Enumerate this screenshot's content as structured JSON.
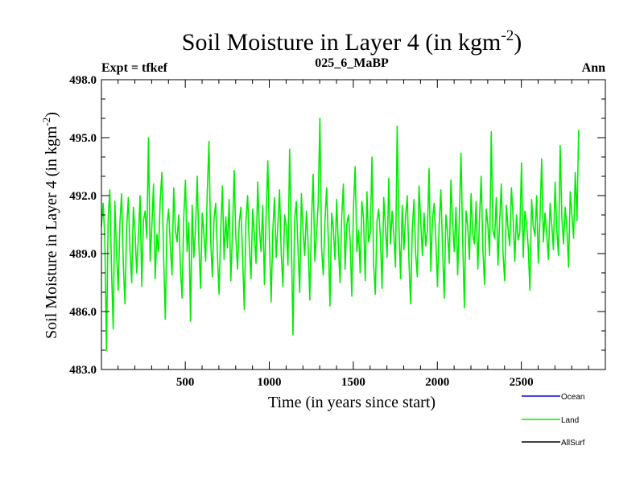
{
  "chart_data": {
    "type": "line",
    "title_main": "Soil Moisture in Layer 4 (in kgm",
    "title_sup": "-2",
    "title_end": ")",
    "subtitle_left": "Expt = tfkef",
    "subtitle_center": "025_6_MaBP",
    "subtitle_right": "Ann",
    "xlabel": "Time (in years since start)",
    "ylabel_main": "Soil Moisture in Layer 4 (in kgm",
    "ylabel_sup": "-2",
    "ylabel_end": ")",
    "xlim": [
      1,
      3000
    ],
    "ylim": [
      483.0,
      498.0
    ],
    "x_ticks": [
      500,
      1000,
      1500,
      2000,
      2500
    ],
    "x_tick_labels": [
      "500",
      "1000",
      "1500",
      "2000",
      "2500"
    ],
    "y_ticks": [
      483.0,
      486.0,
      489.0,
      492.0,
      495.0,
      498.0
    ],
    "y_tick_labels": [
      "483.0",
      "486.0",
      "489.0",
      "492.0",
      "495.0",
      "498.0"
    ],
    "grid": false,
    "legend_placement": "bottom-right",
    "series": [
      {
        "name": "Ocean",
        "color": "#0000ff",
        "values": []
      },
      {
        "name": "Land",
        "color": "#00ee00",
        "x_start": 1,
        "x_step": 10,
        "values": [
          490.4,
          491.6,
          489.9,
          484.0,
          490.8,
          492.3,
          488.2,
          485.1,
          491.7,
          489.0,
          487.1,
          490.6,
          492.1,
          488.5,
          486.4,
          490.3,
          491.9,
          489.2,
          487.5,
          491.4,
          490.1,
          488.0,
          489.9,
          492.0,
          487.3,
          490.7,
          491.2,
          489.8,
          495.0,
          488.6,
          490.4,
          492.6,
          487.7,
          490.0,
          489.1,
          491.8,
          493.2,
          488.9,
          485.6,
          490.5,
          491.3,
          489.4,
          487.9,
          492.4,
          490.2,
          489.6,
          491.0,
          488.3,
          486.7,
          490.9,
          492.8,
          489.1,
          490.6,
          485.5,
          491.5,
          488.8,
          490.3,
          493.0,
          489.5,
          487.2,
          491.1,
          490.0,
          488.6,
          492.2,
          494.8,
          489.7,
          487.8,
          490.8,
          491.6,
          489.0,
          486.9,
          490.2,
          492.5,
          488.7,
          490.9,
          489.3,
          491.8,
          487.6,
          490.1,
          493.3,
          489.8,
          488.2,
          490.6,
          491.4,
          488.9,
          486.1,
          490.7,
          492.0,
          489.4,
          487.7,
          491.3,
          490.0,
          488.5,
          492.7,
          490.3,
          489.1,
          491.5,
          487.4,
          490.9,
          493.8,
          489.6,
          486.5,
          490.2,
          491.9,
          488.8,
          490.5,
          492.3,
          489.0,
          487.3,
          491.0,
          490.4,
          488.4,
          494.4,
          489.9,
          484.8,
          490.8,
          491.7,
          489.2,
          487.0,
          492.1,
          490.1,
          488.9,
          491.2,
          489.5,
          486.6,
          490.7,
          493.1,
          488.6,
          490.0,
          491.6,
          496.0,
          489.3,
          487.9,
          490.6,
          492.4,
          489.8,
          486.3,
          491.1,
          490.3,
          488.7,
          491.8,
          489.4,
          487.5,
          490.9,
          492.6,
          488.2,
          490.5,
          491.0,
          489.7,
          486.8,
          491.4,
          493.5,
          489.1,
          490.2,
          488.0,
          491.7,
          490.8,
          487.6,
          492.2,
          489.6,
          490.1,
          494.0,
          488.4,
          486.9,
          490.7,
          491.3,
          489.9,
          487.2,
          491.9,
          490.4,
          488.8,
          492.9,
          489.5,
          491.2,
          490.0,
          488.3,
          495.6,
          490.6,
          487.7,
          491.5,
          489.2,
          490.9,
          492.0,
          488.6,
          486.4,
          490.3,
          491.8,
          489.0,
          487.8,
          492.5,
          490.7,
          488.9,
          491.1,
          489.4,
          490.2,
          493.4,
          488.1,
          490.8,
          491.6,
          489.7,
          487.3,
          490.5,
          492.3,
          489.3,
          486.7,
          491.0,
          490.1,
          488.5,
          492.8,
          490.6,
          489.1,
          491.4,
          487.9,
          490.9,
          494.2,
          489.6,
          486.2,
          491.2,
          490.4,
          488.7,
          492.1,
          490.0,
          489.5,
          491.7,
          488.2,
          490.8,
          493.0,
          489.2,
          487.4,
          491.3,
          490.5,
          488.9,
          495.3,
          490.2,
          489.8,
          491.9,
          488.4,
          490.7,
          492.6,
          489.0,
          487.6,
          491.5,
          490.3,
          489.4,
          492.4,
          490.9,
          488.6,
          491.0,
          489.7,
          490.1,
          493.7,
          488.8,
          491.2,
          490.6,
          489.3,
          487.1,
          491.8,
          490.4,
          489.9,
          492.0,
          488.5,
          490.8,
          493.9,
          489.6,
          491.1,
          490.0,
          488.7,
          491.6,
          490.5,
          489.2,
          492.7,
          490.2,
          488.9,
          494.6,
          490.9,
          489.5,
          491.4,
          490.3,
          488.3,
          492.2,
          491.0,
          489.8,
          493.2,
          490.7,
          495.4
        ]
      },
      {
        "name": "AllSurf",
        "color": "#000000",
        "values": []
      }
    ]
  }
}
